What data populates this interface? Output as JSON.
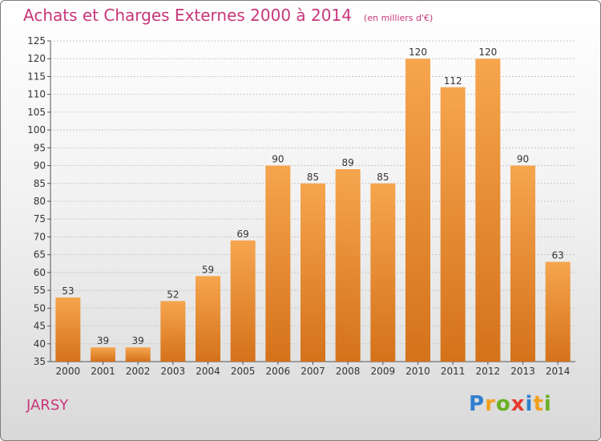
{
  "title": "Achats et Charges Externes 2000 à 2014",
  "unit": "(en milliers d'€)",
  "commune": "JARSY",
  "logo": {
    "text": "Proxiti",
    "letters": [
      {
        "ch": "P",
        "color": "#2f7fd0"
      },
      {
        "ch": "r",
        "color": "#f0a020"
      },
      {
        "ch": "o",
        "color": "#6ab023"
      },
      {
        "ch": "x",
        "color": "#e63a2e"
      },
      {
        "ch": "i",
        "color": "#2f7fd0"
      },
      {
        "ch": "t",
        "color": "#f0a020"
      },
      {
        "ch": "i",
        "color": "#6ab023"
      }
    ]
  },
  "colors": {
    "title": "#c8367a",
    "bar_light": "#f6a54f",
    "bar_dark": "#d4721a",
    "grid": "#c8c8c8"
  },
  "chart_data": {
    "type": "bar",
    "categories": [
      "2000",
      "2001",
      "2002",
      "2003",
      "2004",
      "2005",
      "2006",
      "2007",
      "2008",
      "2009",
      "2010",
      "2011",
      "2012",
      "2013",
      "2014"
    ],
    "values": [
      53,
      39,
      39,
      52,
      59,
      69,
      90,
      85,
      89,
      85,
      120,
      112,
      120,
      90,
      63
    ],
    "ylim": [
      35,
      125
    ],
    "yticks": [
      "35",
      "40",
      "45",
      "50",
      "55",
      "60",
      "65",
      "70",
      "75",
      "80",
      "85",
      "90",
      "95",
      "100",
      "105",
      "110",
      "115",
      "120",
      "125"
    ],
    "grid": true,
    "data_labels": true
  }
}
